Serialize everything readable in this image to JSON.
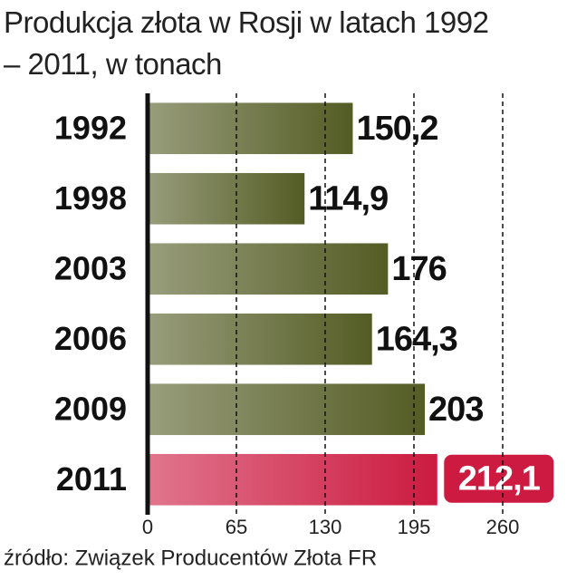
{
  "chart_data": {
    "type": "hbar",
    "title": "Produkcja złota w Rosji w latach 1992 – 2011, w tonach",
    "source": "źródło: Związek Producentów Złota FR",
    "categories": [
      "1992",
      "1998",
      "2003",
      "2006",
      "2009",
      "2011"
    ],
    "values": [
      150.2,
      114.9,
      176,
      164.3,
      203,
      212.1
    ],
    "value_labels": [
      "150,2",
      "114,9",
      "176",
      "164,3",
      "203",
      "212,1"
    ],
    "colors": [
      "#545c24",
      "#545c24",
      "#545c24",
      "#545c24",
      "#545c24",
      "#cc1a40"
    ],
    "highlight_index": 5,
    "xlim": [
      0,
      260
    ],
    "xticks": [
      0,
      65,
      130,
      195,
      260
    ],
    "grid": true
  }
}
